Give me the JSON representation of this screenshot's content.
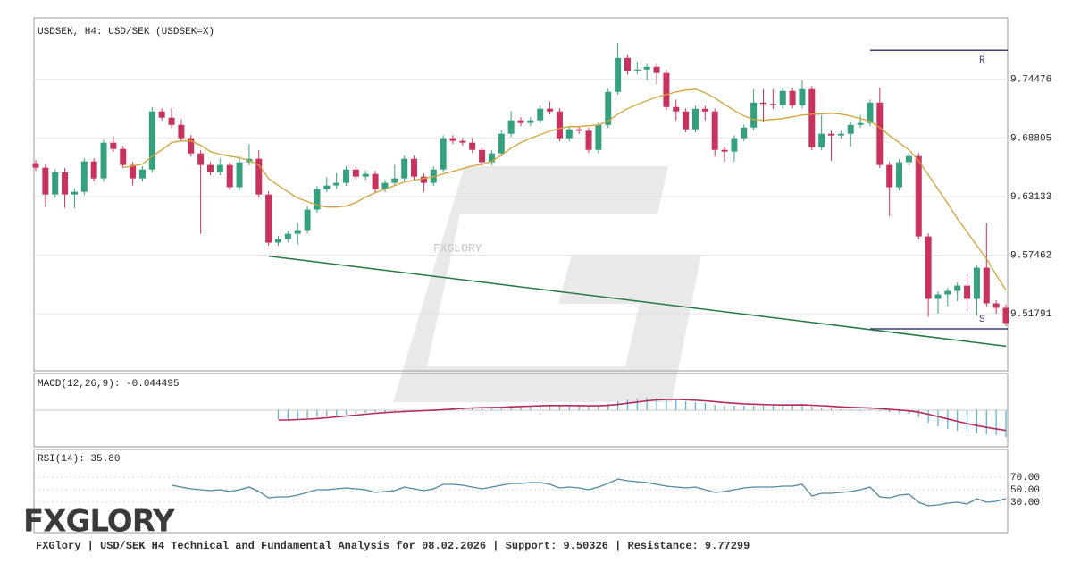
{
  "chart_data": [
    {
      "type": "candlestick",
      "title": "USDSEK, H4: USD/SEK (USDSEK=X)",
      "open": [
        9.6636,
        9.6593,
        9.6333,
        9.6549,
        9.6333,
        9.6359,
        9.6653,
        9.6489,
        9.6835,
        9.6774,
        9.6619,
        9.6489,
        9.6575,
        9.7137,
        9.7077,
        9.7007,
        9.6878,
        9.6731,
        9.6619,
        9.6549,
        9.6619,
        9.6403,
        9.6645,
        9.6679,
        9.6333,
        9.5867,
        9.5901,
        9.5953,
        9.5988,
        9.6187,
        9.6385,
        9.642,
        9.6446,
        9.6575,
        9.6506,
        9.6532,
        9.6385,
        9.6446,
        9.6489,
        9.6679,
        9.6506,
        9.6446,
        9.6575,
        9.6878,
        9.6852,
        9.6835,
        9.6765,
        9.6645,
        9.6731,
        9.6921,
        9.7051,
        9.7025,
        9.7051,
        9.7163,
        9.7137,
        9.6878,
        9.6964,
        9.695,
        9.6765,
        9.7007,
        9.7327,
        9.7655,
        9.7526,
        9.7543,
        9.7569,
        9.7509,
        9.718,
        9.7137,
        9.6964,
        9.7163,
        9.7137,
        9.6765,
        9.6748,
        9.6878,
        9.6981,
        9.7223,
        9.721,
        9.7197,
        9.7336,
        9.7197,
        9.7353,
        9.6791,
        9.6921,
        9.6904,
        9.6921,
        9.7007,
        9.7025,
        9.7223,
        9.6619,
        9.6403,
        9.6645,
        9.6705,
        9.5927,
        9.5323,
        9.5366,
        9.54,
        9.5452,
        9.5323,
        9.5625,
        9.5279,
        9.5236
      ],
      "high": [
        9.6666,
        9.6623,
        9.6579,
        9.659,
        9.6389,
        9.6683,
        9.6683,
        9.6865,
        9.69,
        9.6804,
        9.6649,
        9.6605,
        9.718,
        9.7167,
        9.717,
        9.706,
        9.6908,
        9.6761,
        9.6649,
        9.668,
        9.6649,
        9.67,
        9.682,
        9.676,
        9.6363,
        9.5931,
        9.5983,
        9.606,
        9.6217,
        9.6415,
        9.65,
        9.654,
        9.6605,
        9.6605,
        9.6562,
        9.6562,
        9.6476,
        9.662,
        9.6709,
        9.6709,
        9.6536,
        9.6605,
        9.6908,
        9.6908,
        9.6882,
        9.688,
        9.6795,
        9.6761,
        9.6951,
        9.714,
        9.7081,
        9.7081,
        9.7193,
        9.723,
        9.7167,
        9.6994,
        9.6994,
        9.698,
        9.7037,
        9.7357,
        9.78,
        9.7685,
        9.762,
        9.76,
        9.7599,
        9.7539,
        9.725,
        9.7167,
        9.7193,
        9.7193,
        9.7167,
        9.6795,
        9.6908,
        9.7011,
        9.7353,
        9.7353,
        9.7353,
        9.7366,
        9.7366,
        9.744,
        9.7383,
        9.71,
        9.6951,
        9.6951,
        9.7037,
        9.71,
        9.7253,
        9.737,
        9.6649,
        9.6675,
        9.6735,
        9.6735,
        9.5957,
        9.5396,
        9.543,
        9.5482,
        9.556,
        9.5655,
        9.6057,
        9.5309,
        9.5266
      ],
      "low": [
        9.6563,
        9.6213,
        9.6303,
        9.6203,
        9.62,
        9.6329,
        9.6459,
        9.6459,
        9.6744,
        9.6589,
        9.642,
        9.6459,
        9.6545,
        9.7047,
        9.6977,
        9.6848,
        9.6701,
        9.5953,
        9.6519,
        9.6519,
        9.6373,
        9.6373,
        9.6615,
        9.6303,
        9.5837,
        9.5837,
        9.5871,
        9.585,
        9.5958,
        9.6157,
        9.6355,
        9.639,
        9.6416,
        9.6476,
        9.6476,
        9.6355,
        9.6355,
        9.6416,
        9.6459,
        9.6476,
        9.636,
        9.6416,
        9.6545,
        9.6822,
        9.6805,
        9.6735,
        9.6615,
        9.6615,
        9.6701,
        9.6891,
        9.6995,
        9.6995,
        9.7021,
        9.7107,
        9.6848,
        9.6848,
        9.692,
        9.6735,
        9.6735,
        9.6977,
        9.7297,
        9.7496,
        9.7496,
        9.744,
        9.74,
        9.715,
        9.705,
        9.6934,
        9.6934,
        9.705,
        9.67,
        9.665,
        9.665,
        9.6848,
        9.6951,
        9.704,
        9.716,
        9.7167,
        9.7167,
        9.7167,
        9.6761,
        9.6761,
        9.666,
        9.6874,
        9.68,
        9.6977,
        9.6995,
        9.6589,
        9.612,
        9.6373,
        9.6615,
        9.5897,
        9.515,
        9.518,
        9.525,
        9.53,
        9.52,
        9.516,
        9.5249,
        9.518,
        9.5059
      ],
      "close": [
        9.6593,
        9.6333,
        9.6549,
        9.6333,
        9.6359,
        9.6653,
        9.6489,
        9.6835,
        9.6774,
        9.6619,
        9.6489,
        9.6575,
        9.7137,
        9.7077,
        9.7007,
        9.6878,
        9.6731,
        9.6619,
        9.6549,
        9.6619,
        9.6403,
        9.6645,
        9.6679,
        9.6333,
        9.5867,
        9.5901,
        9.5953,
        9.5988,
        9.6187,
        9.6385,
        9.642,
        9.6446,
        9.6575,
        9.6506,
        9.6532,
        9.6385,
        9.6446,
        9.6489,
        9.6679,
        9.6506,
        9.6446,
        9.6575,
        9.6878,
        9.6852,
        9.6835,
        9.6765,
        9.6645,
        9.6731,
        9.6921,
        9.7051,
        9.7025,
        9.7051,
        9.7163,
        9.7137,
        9.6878,
        9.6964,
        9.695,
        9.6765,
        9.7007,
        9.7327,
        9.7655,
        9.7526,
        9.7543,
        9.7569,
        9.7509,
        9.718,
        9.7137,
        9.6964,
        9.7163,
        9.7137,
        9.6765,
        9.6748,
        9.6878,
        9.6981,
        9.7223,
        9.721,
        9.7197,
        9.7336,
        9.7197,
        9.7353,
        9.6791,
        9.6921,
        9.6904,
        9.6921,
        9.7007,
        9.7025,
        9.7223,
        9.6619,
        9.6403,
        9.6645,
        9.6705,
        9.5927,
        9.5323,
        9.5366,
        9.54,
        9.5452,
        9.5323,
        9.5625,
        9.5279,
        9.5236,
        9.5089
      ],
      "up_color": "#35a07f",
      "down_color": "#c8335d",
      "moving_average": {
        "color": "#d6a236",
        "values": [
          null,
          null,
          null,
          null,
          null,
          null,
          null,
          null,
          null,
          9.6593,
          9.661,
          9.6627,
          9.6705,
          9.6765,
          9.6835,
          9.6852,
          9.6852,
          9.6809,
          9.6748,
          9.6722,
          9.6705,
          9.6688,
          9.6662,
          9.6619,
          9.6489,
          9.642,
          9.6359,
          9.6299,
          9.6264,
          9.623,
          9.6212,
          9.6212,
          9.6221,
          9.6256,
          9.6308,
          9.6351,
          9.6385,
          9.642,
          9.6454,
          9.6472,
          9.6489,
          9.6506,
          9.6532,
          9.6558,
          9.6584,
          9.661,
          9.6627,
          9.6653,
          9.6714,
          9.6783,
          9.6835,
          9.6878,
          9.6912,
          9.6947,
          9.6973,
          9.699,
          9.699,
          9.6999,
          9.7007,
          9.7042,
          9.7111,
          9.7163,
          9.7206,
          9.7241,
          9.7275,
          9.7301,
          9.7327,
          9.7344,
          9.7353,
          9.7318,
          9.7267,
          9.7206,
          9.7146,
          9.7094,
          9.7059,
          9.7051,
          9.7059,
          9.7068,
          9.7085,
          9.7102,
          9.7111,
          9.7111,
          9.712,
          9.7111,
          9.7094,
          9.7068,
          9.7042,
          9.6981,
          9.6904,
          9.6835,
          9.6765,
          9.6662,
          9.6524,
          9.6385,
          9.6247,
          9.61,
          9.597,
          9.584,
          9.5711,
          9.5555,
          9.5408
        ]
      },
      "levels": [
        {
          "label": "R",
          "value": 9.77299,
          "start": 86,
          "color": "#3b3f78"
        },
        {
          "label": "S",
          "value": 9.50326,
          "start": 86,
          "color": "#3b3f78"
        }
      ],
      "trendline": {
        "color": "#237a3e",
        "start": [
          24,
          9.5737
        ],
        "end": [
          100,
          9.4865
        ]
      },
      "ylim": [
        9.4626,
        9.8043
      ],
      "yticks": [
        9.51791,
        9.57462,
        9.63133,
        9.68805,
        9.74476
      ],
      "grid": true
    },
    {
      "type": "macd",
      "title": "MACD(12,26,9): -0.044495",
      "histogram": {
        "color": "#5bb4d8",
        "values": [
          null,
          null,
          null,
          null,
          null,
          null,
          null,
          null,
          null,
          null,
          null,
          null,
          null,
          null,
          null,
          null,
          null,
          null,
          null,
          null,
          null,
          null,
          null,
          null,
          null,
          -0.0148,
          -0.0148,
          -0.0148,
          -0.0133,
          -0.0118,
          -0.0104,
          -0.0089,
          -0.0074,
          -0.0059,
          -0.0044,
          -0.003,
          -0.003,
          -0.0015,
          -0.0015,
          0,
          0,
          0.0015,
          0.003,
          0.0044,
          0.0044,
          0.0044,
          0.0044,
          0.0044,
          0.0059,
          0.0074,
          0.0074,
          0.0074,
          0.0089,
          0.0089,
          0.0074,
          0.0074,
          0.0074,
          0.0059,
          0.0074,
          0.0104,
          0.0148,
          0.0178,
          0.0192,
          0.0207,
          0.0207,
          0.0192,
          0.0178,
          0.0148,
          0.0133,
          0.0118,
          0.0089,
          0.0074,
          0.0074,
          0.0074,
          0.0074,
          0.0074,
          0.0074,
          0.0074,
          0.0089,
          0.0089,
          0.0059,
          0.0044,
          0.003,
          0.0015,
          0.0015,
          0.0015,
          0.0015,
          -0.0015,
          -0.003,
          -0.0044,
          -0.0059,
          -0.0118,
          -0.0207,
          -0.0266,
          -0.0311,
          -0.034,
          -0.037,
          -0.0385,
          -0.04,
          -0.0414,
          -0.044495
        ]
      },
      "signal": {
        "color": "#b8285c",
        "values": [
          null,
          null,
          null,
          null,
          null,
          null,
          null,
          null,
          null,
          null,
          null,
          null,
          null,
          null,
          null,
          null,
          null,
          null,
          null,
          null,
          null,
          null,
          null,
          null,
          null,
          -0.0163,
          -0.0163,
          -0.0155,
          -0.0148,
          -0.014,
          -0.0126,
          -0.0111,
          -0.0096,
          -0.0081,
          -0.0066,
          -0.0052,
          -0.004,
          -0.003,
          -0.0022,
          -0.0015,
          -0.0008,
          -0.0002,
          0.0008,
          0.002,
          0.003,
          0.0037,
          0.0041,
          0.0044,
          0.0048,
          0.0055,
          0.0062,
          0.0067,
          0.0072,
          0.0077,
          0.0077,
          0.0077,
          0.0076,
          0.0072,
          0.0072,
          0.008,
          0.0095,
          0.0115,
          0.0135,
          0.0155,
          0.017,
          0.0178,
          0.018,
          0.0174,
          0.0166,
          0.0155,
          0.0142,
          0.0128,
          0.0116,
          0.0106,
          0.0099,
          0.0094,
          0.0089,
          0.0086,
          0.0086,
          0.0087,
          0.0081,
          0.0074,
          0.0065,
          0.0055,
          0.0047,
          0.0041,
          0.0036,
          0.0026,
          0.0015,
          0.0003,
          -0.001,
          -0.0032,
          -0.0066,
          -0.0105,
          -0.0146,
          -0.0185,
          -0.0222,
          -0.0255,
          -0.0284,
          -0.031,
          -0.0337
        ]
      },
      "ylim": [
        -0.0608,
        0.0608
      ]
    },
    {
      "type": "rsi",
      "title": "RSI(14): 35.80",
      "color": "#4f88a6",
      "values": [
        null,
        null,
        null,
        null,
        null,
        null,
        null,
        null,
        null,
        null,
        null,
        null,
        null,
        null,
        57.1,
        54.3,
        51.4,
        50.0,
        48.6,
        50.0,
        47.1,
        50.0,
        54.3,
        47.1,
        37.1,
        38.6,
        38.6,
        41.4,
        45.7,
        50.0,
        50.0,
        51.4,
        52.9,
        51.4,
        50.0,
        45.7,
        47.1,
        48.6,
        54.3,
        51.4,
        48.6,
        51.4,
        58.6,
        58.6,
        57.1,
        54.3,
        51.4,
        54.3,
        57.1,
        60.0,
        60.0,
        61.4,
        61.4,
        58.6,
        52.9,
        54.3,
        52.9,
        50.0,
        54.3,
        60.0,
        67.1,
        64.3,
        62.9,
        61.4,
        58.6,
        55.7,
        54.3,
        52.9,
        54.3,
        50.0,
        45.7,
        47.1,
        50.0,
        52.9,
        54.3,
        54.3,
        54.3,
        55.7,
        55.7,
        58.6,
        40.0,
        44.3,
        44.3,
        45.7,
        47.1,
        50.0,
        54.3,
        38.6,
        37.1,
        41.4,
        42.9,
        30.0,
        24.3,
        25.7,
        28.6,
        30.0,
        27.1,
        35.7,
        30.0,
        31.4,
        35.8
      ],
      "ylim": [
        -18.6,
        114.3
      ],
      "yticks": [
        {
          "value": 30,
          "label": "30.00"
        },
        {
          "value": 50,
          "label": "50.00"
        },
        {
          "value": 70,
          "label": "70.00"
        }
      ],
      "grid": true
    }
  ],
  "watermark": "FXGLORY",
  "logo": "FXGLORY",
  "footer": "FXGlory | USD/SEK H4 Technical and Fundamental Analysis for 08.02.2026 | Support: 9.50326 | Resistance: 9.77299"
}
